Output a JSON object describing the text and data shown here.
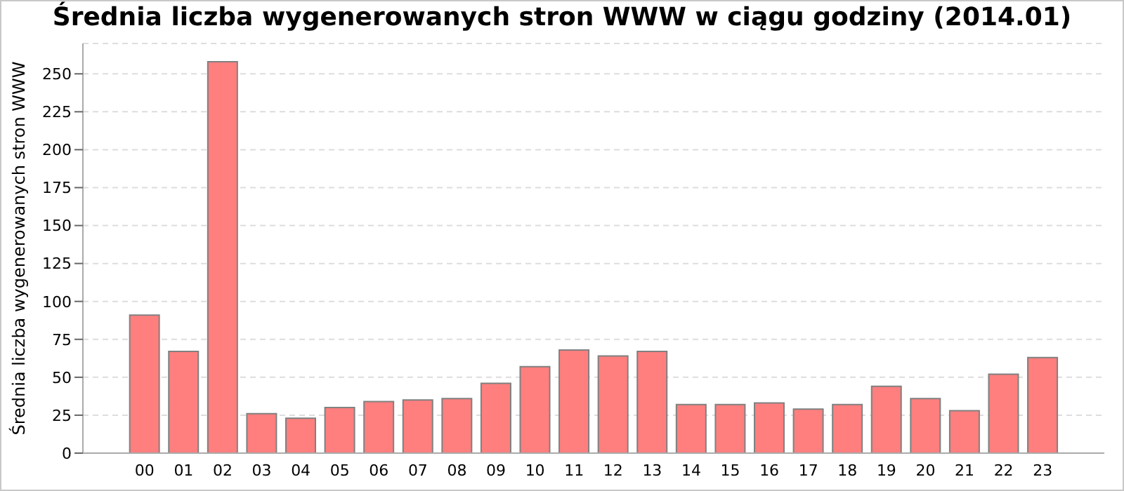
{
  "chart_data": {
    "type": "bar",
    "title": "Średnia liczba wygenerowanych stron WWW w ciągu godziny (2014.01)",
    "ylabel": "Średnia liczba wygenerowanych stron WWW",
    "categories": [
      "00",
      "01",
      "02",
      "03",
      "04",
      "05",
      "06",
      "07",
      "08",
      "09",
      "10",
      "11",
      "12",
      "13",
      "14",
      "15",
      "16",
      "17",
      "18",
      "19",
      "20",
      "21",
      "22",
      "23"
    ],
    "values": [
      91,
      67,
      258,
      26,
      23,
      30,
      34,
      35,
      36,
      46,
      57,
      68,
      64,
      67,
      32,
      32,
      33,
      29,
      32,
      44,
      36,
      28,
      52,
      63
    ],
    "color": "#ff7f7f",
    "ylim": [
      0,
      270
    ],
    "yticks": [
      0,
      25,
      50,
      75,
      100,
      125,
      150,
      175,
      200,
      225,
      250
    ],
    "grid": "y"
  }
}
